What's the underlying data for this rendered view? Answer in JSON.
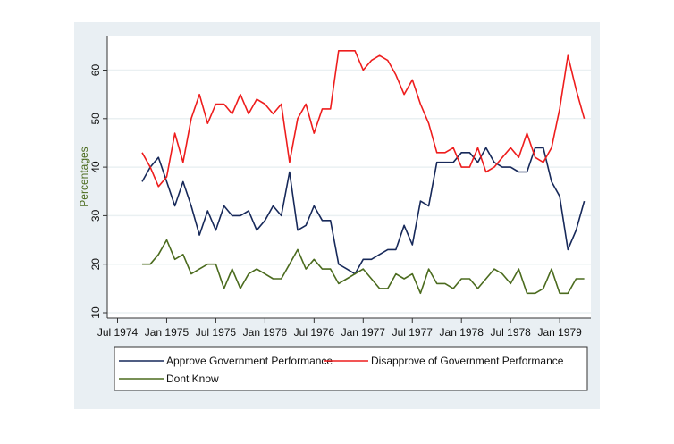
{
  "chart_data": {
    "type": "line",
    "title": "",
    "xlabel": "",
    "ylabel": "Percentages",
    "ylim": [
      8,
      66
    ],
    "yticks": [
      10,
      20,
      30,
      40,
      50,
      60
    ],
    "xticks": [
      "Jul 1974",
      "Jan 1975",
      "Jul 1975",
      "Jan 1976",
      "Jul 1976",
      "Jan 1977",
      "Jul 1977",
      "Jan 1978",
      "Jul 1978",
      "Jan 1979"
    ],
    "xtick_dates": [
      "1974-07",
      "1975-01",
      "1975-07",
      "1976-01",
      "1976-07",
      "1977-01",
      "1977-07",
      "1978-01",
      "1978-07",
      "1979-01"
    ],
    "xlim": [
      "1974-05",
      "1979-06"
    ],
    "grid": true,
    "legend_position": "bottom",
    "x": [
      "1974-10",
      "1974-11",
      "1974-12",
      "1975-01",
      "1975-02",
      "1975-03",
      "1975-04",
      "1975-05",
      "1975-06",
      "1975-07",
      "1975-08",
      "1975-09",
      "1975-10",
      "1975-11",
      "1975-12",
      "1976-01",
      "1976-02",
      "1976-03",
      "1976-04",
      "1976-05",
      "1976-06",
      "1976-07",
      "1976-08",
      "1976-09",
      "1976-10",
      "1976-11",
      "1976-12",
      "1977-01",
      "1977-02",
      "1977-03",
      "1977-04",
      "1977-05",
      "1977-06",
      "1977-07",
      "1977-08",
      "1977-09",
      "1977-10",
      "1977-11",
      "1977-12",
      "1978-01",
      "1978-02",
      "1978-03",
      "1978-04",
      "1978-05",
      "1978-06",
      "1978-07",
      "1978-08",
      "1978-09",
      "1978-10",
      "1978-11",
      "1978-12",
      "1979-01",
      "1979-02",
      "1979-03",
      "1979-04"
    ],
    "series": [
      {
        "name": "Approve Government Performance",
        "color": "#17295a",
        "values": [
          37,
          40,
          42,
          37,
          32,
          37,
          32,
          26,
          31,
          27,
          32,
          30,
          30,
          31,
          27,
          29,
          32,
          30,
          39,
          27,
          28,
          32,
          29,
          29,
          20,
          19,
          18,
          21,
          21,
          22,
          23,
          23,
          28,
          24,
          33,
          32,
          41,
          41,
          41,
          43,
          43,
          41,
          44,
          41,
          40,
          40,
          39,
          39,
          44,
          44,
          37,
          34,
          23,
          27,
          33
        ]
      },
      {
        "name": "Disapprove of Government Performance",
        "color": "#ee1d1d",
        "values": [
          43,
          40,
          36,
          38,
          47,
          41,
          50,
          55,
          49,
          53,
          53,
          51,
          55,
          51,
          54,
          53,
          51,
          53,
          41,
          50,
          53,
          47,
          52,
          52,
          64,
          64,
          64,
          60,
          62,
          63,
          62,
          59,
          55,
          58,
          53,
          49,
          43,
          43,
          44,
          40,
          40,
          44,
          39,
          40,
          42,
          44,
          42,
          47,
          42,
          41,
          44,
          52,
          63,
          56,
          50
        ]
      },
      {
        "name": "Dont Know",
        "color": "#4b6b1e",
        "values": [
          20,
          20,
          22,
          25,
          21,
          22,
          18,
          19,
          20,
          20,
          15,
          19,
          15,
          18,
          19,
          18,
          17,
          17,
          20,
          23,
          19,
          21,
          19,
          19,
          16,
          17,
          18,
          19,
          17,
          15,
          15,
          18,
          17,
          18,
          14,
          19,
          16,
          16,
          15,
          17,
          17,
          15,
          17,
          19,
          18,
          16,
          19,
          14,
          14,
          15,
          19,
          14,
          14,
          17,
          17
        ]
      }
    ]
  }
}
